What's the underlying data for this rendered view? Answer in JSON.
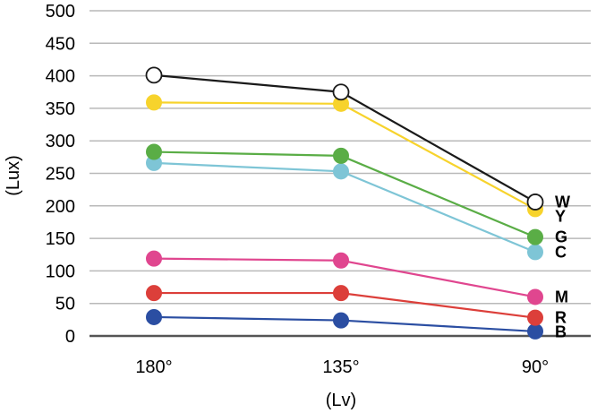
{
  "chart_data": {
    "type": "line",
    "title": "",
    "xlabel": "(Lv)",
    "ylabel": "(Lux)",
    "categories": [
      "180°",
      "135°",
      "90°"
    ],
    "ylim": [
      0,
      500
    ],
    "yticks": [
      0,
      50,
      100,
      150,
      200,
      250,
      300,
      350,
      400,
      450,
      500
    ],
    "ytick_labels": [
      "0",
      "50",
      "100",
      "150",
      "200",
      "250",
      "300",
      "350",
      "400",
      "450",
      "500"
    ],
    "grid": true,
    "legend": "none",
    "series": [
      {
        "name": "W",
        "color": "#1a1a1a",
        "marker_fill": "#ffffff",
        "values": [
          401,
          375,
          206
        ]
      },
      {
        "name": "Y",
        "color": "#f7d32c",
        "marker_fill": "#f7d32c",
        "values": [
          359,
          357,
          195
        ]
      },
      {
        "name": "G",
        "color": "#5aad46",
        "marker_fill": "#5aad46",
        "values": [
          283,
          277,
          152
        ]
      },
      {
        "name": "C",
        "color": "#7ec5d6",
        "marker_fill": "#7ec5d6",
        "values": [
          266,
          253,
          129
        ]
      },
      {
        "name": "M",
        "color": "#e0468f",
        "marker_fill": "#e0468f",
        "values": [
          119,
          116,
          60
        ]
      },
      {
        "name": "R",
        "color": "#dc3f3a",
        "marker_fill": "#dc3f3a",
        "values": [
          66,
          66,
          28
        ]
      },
      {
        "name": "B",
        "color": "#2b4ea2",
        "marker_fill": "#2b4ea2",
        "values": [
          29,
          24,
          7
        ]
      }
    ]
  }
}
